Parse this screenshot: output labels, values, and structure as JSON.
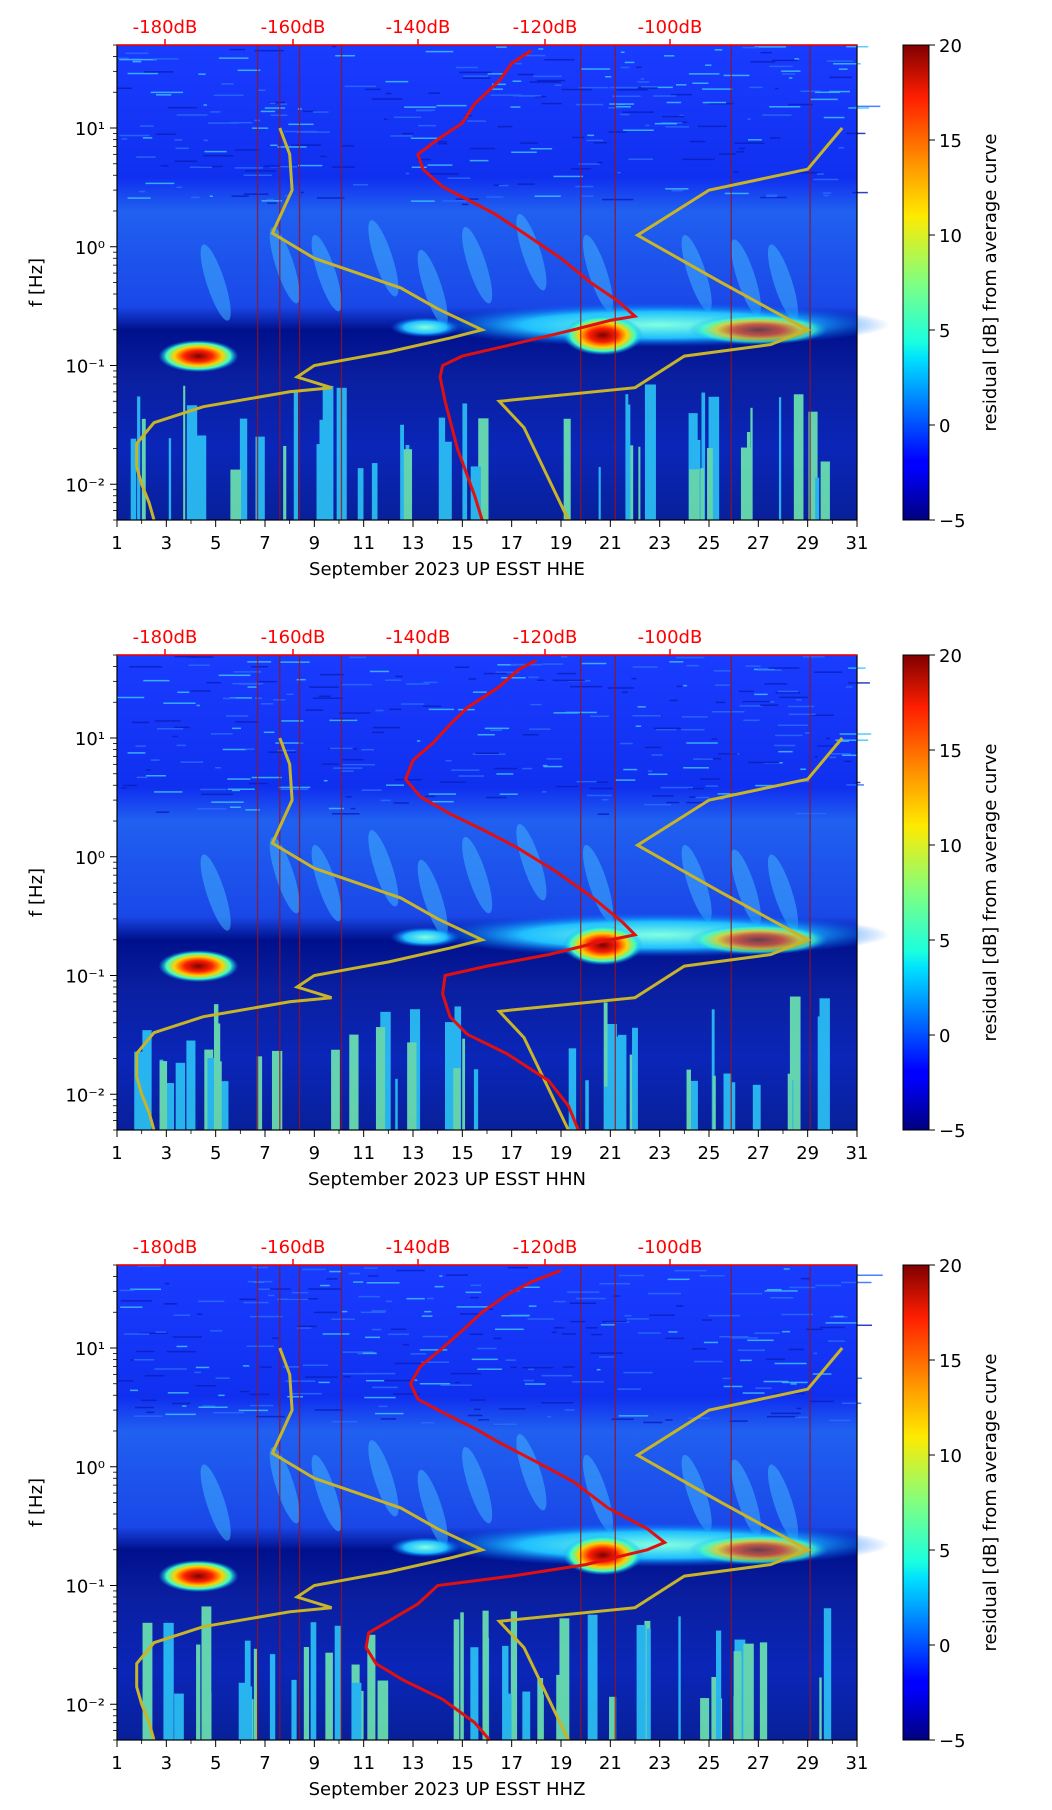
{
  "colors": {
    "db_axis": "#ff0000",
    "red_curve": "#e01010",
    "gold_curve": "#c8b428",
    "text": "#000000"
  },
  "chart_data": [
    {
      "type": "heatmap",
      "title": "",
      "xlabel": "September 2023 UP ESST  HHE",
      "ylabel": "f [Hz]",
      "x_ticks": [
        "1",
        "3",
        "5",
        "7",
        "9",
        "11",
        "13",
        "15",
        "17",
        "19",
        "21",
        "23",
        "25",
        "27",
        "29",
        "31"
      ],
      "y_ticks": [
        "10⁻²",
        "10⁻¹",
        "10⁰",
        "10¹"
      ],
      "top_axis_ticks": [
        "-180dB",
        "-160dB",
        "-140dB",
        "-120dB",
        "-100dB"
      ],
      "colorbar_label": "residual [dB] from average curve",
      "colorbar_ticks": [
        "−5",
        "0",
        "5",
        "10",
        "15",
        "20"
      ],
      "xlim": [
        1,
        31
      ],
      "ylim": [
        0.005,
        50
      ],
      "clim": [
        -5,
        20
      ]
    },
    {
      "type": "heatmap",
      "title": "",
      "xlabel": "September 2023 UP ESST  HHN",
      "ylabel": "f [Hz]",
      "x_ticks": [
        "1",
        "3",
        "5",
        "7",
        "9",
        "11",
        "13",
        "15",
        "17",
        "19",
        "21",
        "23",
        "25",
        "27",
        "29",
        "31"
      ],
      "y_ticks": [
        "10⁻²",
        "10⁻¹",
        "10⁰",
        "10¹"
      ],
      "top_axis_ticks": [
        "-180dB",
        "-160dB",
        "-140dB",
        "-120dB",
        "-100dB"
      ],
      "colorbar_label": "residual [dB] from average curve",
      "colorbar_ticks": [
        "−5",
        "0",
        "5",
        "10",
        "15",
        "20"
      ],
      "xlim": [
        1,
        31
      ],
      "ylim": [
        0.005,
        50
      ],
      "clim": [
        -5,
        20
      ]
    },
    {
      "type": "heatmap",
      "title": "",
      "xlabel": "September 2023 UP ESST  HHZ",
      "ylabel": "f [Hz]",
      "x_ticks": [
        "1",
        "3",
        "5",
        "7",
        "9",
        "11",
        "13",
        "15",
        "17",
        "19",
        "21",
        "23",
        "25",
        "27",
        "29",
        "31"
      ],
      "y_ticks": [
        "10⁻²",
        "10⁻¹",
        "10⁰",
        "10¹"
      ],
      "top_axis_ticks": [
        "-180dB",
        "-160dB",
        "-140dB",
        "-120dB",
        "-100dB"
      ],
      "colorbar_label": "residual [dB] from average curve",
      "colorbar_ticks": [
        "−5",
        "0",
        "5",
        "10",
        "15",
        "20"
      ],
      "xlim": [
        1,
        31
      ],
      "ylim": [
        0.005,
        50
      ],
      "clim": [
        -5,
        20
      ]
    }
  ]
}
